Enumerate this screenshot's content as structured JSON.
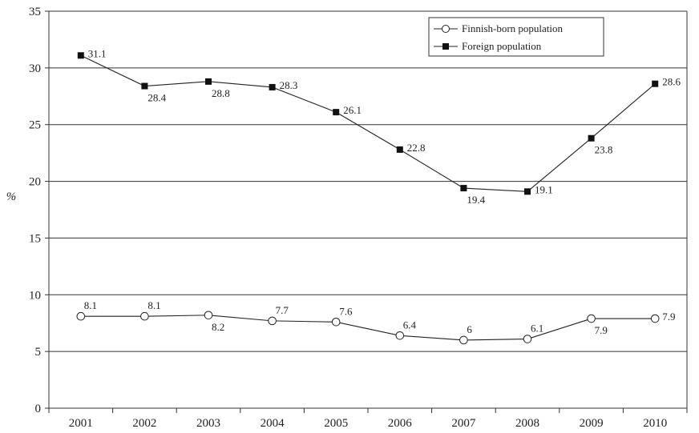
{
  "chart_data": {
    "type": "line",
    "title": "",
    "xlabel": "",
    "ylabel": "%",
    "ylim": [
      0,
      35
    ],
    "yticks": [
      "0",
      "5",
      "10",
      "15",
      "20",
      "25",
      "30",
      "35"
    ],
    "categories": [
      "2001",
      "2002",
      "2003",
      "2004",
      "2005",
      "2006",
      "2007",
      "2008",
      "2009",
      "2010"
    ],
    "grid": "horizontal",
    "legend_position": "top-right",
    "series": [
      {
        "name": "Finnish-born population",
        "marker": "open-circle",
        "values": [
          8.1,
          8.1,
          8.2,
          7.7,
          7.6,
          6.4,
          6,
          6.1,
          7.9,
          7.9
        ],
        "labels": [
          "8.1",
          "8.1",
          "8.2",
          "7.7",
          "7.6",
          "6.4",
          "6",
          "6.1",
          "7.9",
          "7.9"
        ]
      },
      {
        "name": "Foreign population",
        "marker": "filled-square",
        "values": [
          31.1,
          28.4,
          28.8,
          28.3,
          26.1,
          22.8,
          19.4,
          19.1,
          23.8,
          28.6
        ],
        "labels": [
          "31.1",
          "28.4",
          "28.8",
          "28.3",
          "26.1",
          "22.8",
          "19.4",
          "19.1",
          "23.8",
          "28.6"
        ]
      }
    ]
  }
}
